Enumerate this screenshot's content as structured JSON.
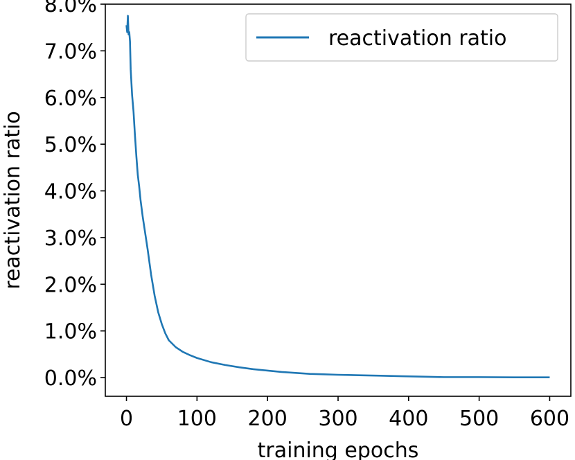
{
  "chart_data": {
    "type": "line",
    "title": "",
    "xlabel": "training epochs",
    "ylabel": "reactivation ratio",
    "xlim": [
      -30,
      630
    ],
    "ylim": [
      -0.004,
      0.08
    ],
    "x_ticks": [
      0,
      100,
      200,
      300,
      400,
      500,
      600
    ],
    "x_tick_labels": [
      "0",
      "100",
      "200",
      "300",
      "400",
      "500",
      "600"
    ],
    "y_ticks": [
      0.0,
      0.01,
      0.02,
      0.03,
      0.04,
      0.05,
      0.06,
      0.07,
      0.08
    ],
    "y_tick_labels": [
      "0.0%",
      "1.0%",
      "2.0%",
      "3.0%",
      "4.0%",
      "5.0%",
      "6.0%",
      "7.0%",
      "8.0%"
    ],
    "grid": false,
    "legend_position": "top-right",
    "series": [
      {
        "name": "reactivation ratio",
        "color": "#1f77b4",
        "x": [
          0,
          1,
          2,
          3,
          4,
          5,
          6,
          8,
          10,
          12,
          14,
          16,
          18,
          20,
          23,
          26,
          30,
          35,
          40,
          45,
          50,
          55,
          60,
          70,
          80,
          90,
          100,
          120,
          140,
          160,
          180,
          200,
          220,
          240,
          260,
          280,
          300,
          330,
          360,
          390,
          420,
          450,
          500,
          550,
          600
        ],
        "values": [
          0.0755,
          0.074,
          0.0775,
          0.0735,
          0.074,
          0.072,
          0.066,
          0.0605,
          0.057,
          0.052,
          0.0475,
          0.0435,
          0.041,
          0.038,
          0.0345,
          0.0315,
          0.0275,
          0.022,
          0.0175,
          0.014,
          0.0115,
          0.0095,
          0.008,
          0.0065,
          0.0055,
          0.0048,
          0.0042,
          0.0033,
          0.0027,
          0.0022,
          0.0018,
          0.0015,
          0.0012,
          0.001,
          0.0008,
          0.0007,
          0.0006,
          0.0005,
          0.0004,
          0.0003,
          0.0002,
          0.0001,
          0.0001,
          5e-05,
          5e-05
        ]
      }
    ]
  }
}
